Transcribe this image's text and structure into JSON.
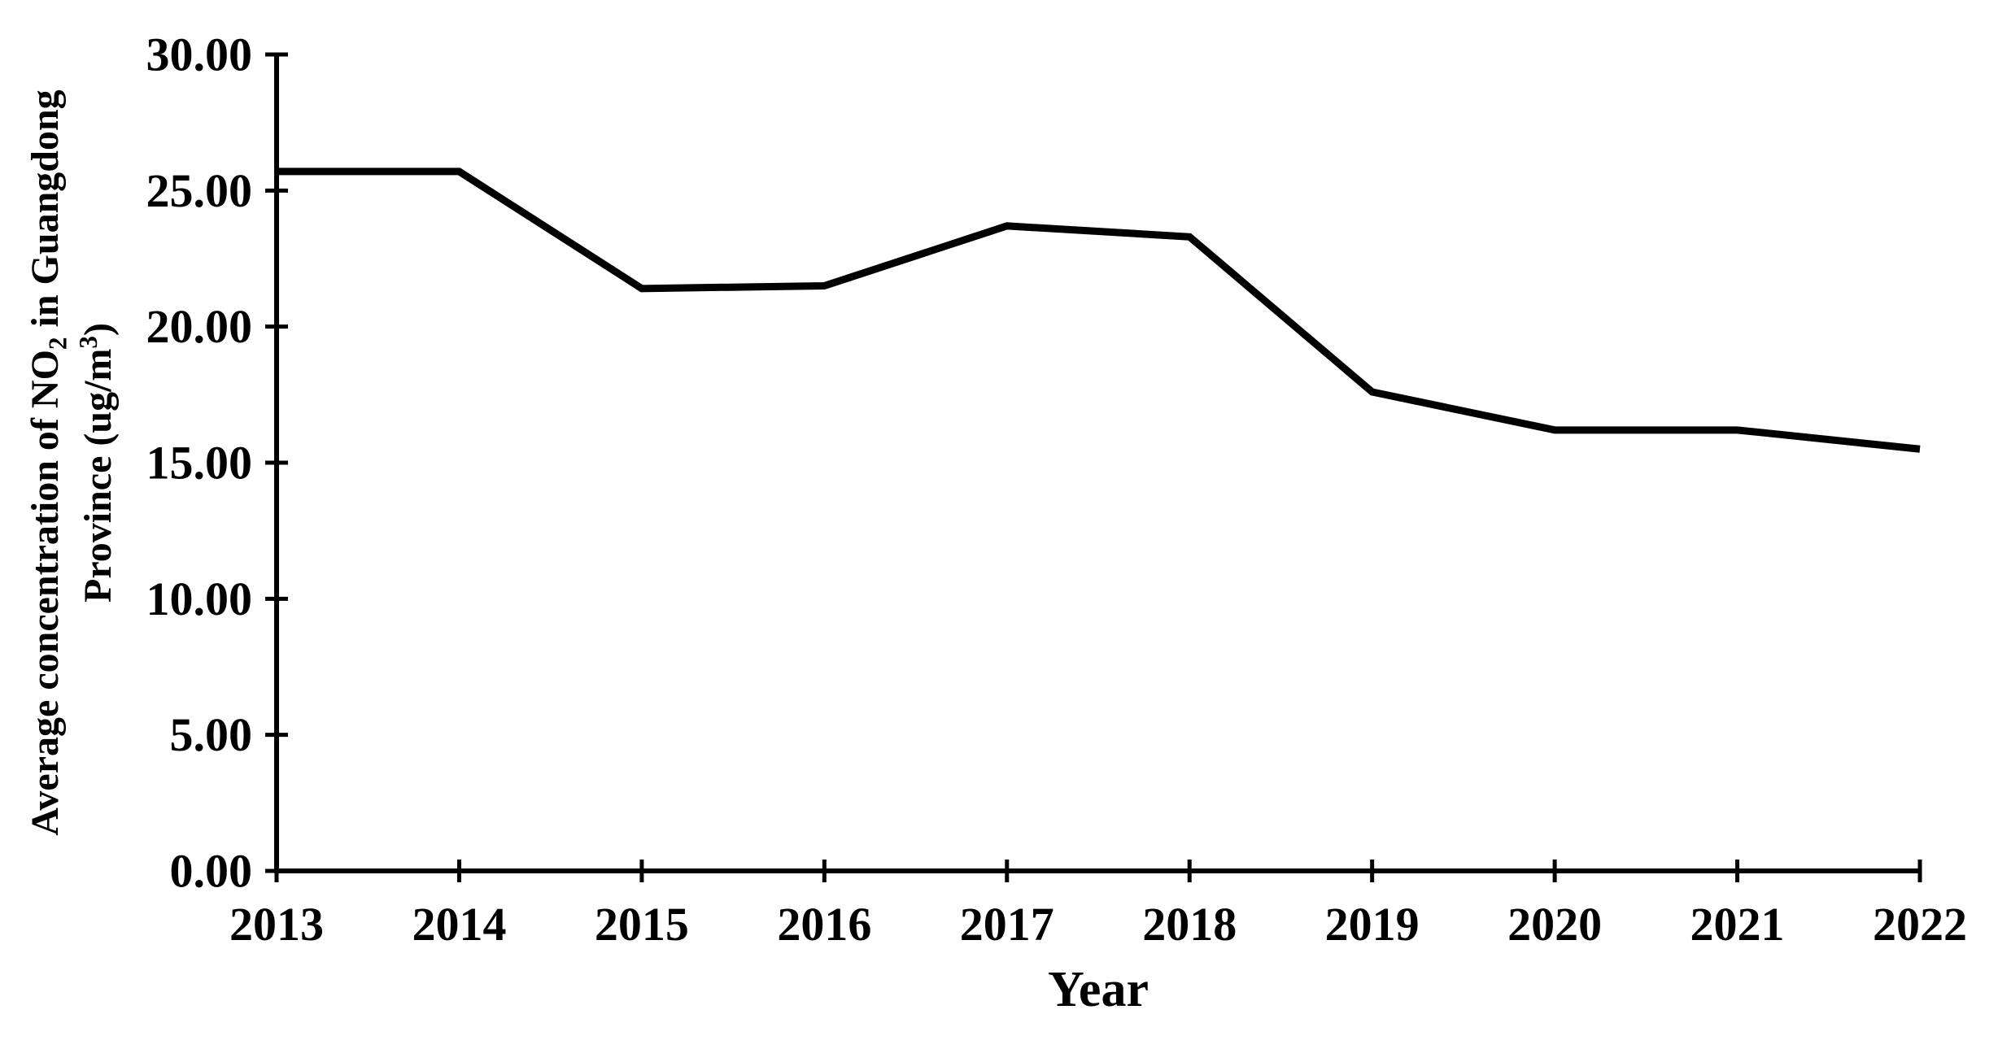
{
  "figure": {
    "background": "#ffffff",
    "axis_color": "#000000",
    "line_color": "#000000",
    "xlabel": "Year",
    "ylabel": {
      "line1_pre": "Average concentration of NO",
      "line1_sub": "2",
      "line1_post": " in Guangdong",
      "line2_pre": "Province (ug/m",
      "line2_sup": "3",
      "line2_post": ")"
    }
  },
  "chart_data": {
    "type": "line",
    "title": "",
    "xlabel": "Year",
    "ylabel": "Average concentration of NO2 in Guangdong Province (ug/m3)",
    "categories": [
      "2013",
      "2014",
      "2015",
      "2016",
      "2017",
      "2018",
      "2019",
      "2020",
      "2021",
      "2022"
    ],
    "values": [
      25.7,
      25.7,
      21.4,
      21.5,
      23.7,
      23.3,
      17.6,
      16.2,
      16.2,
      15.5
    ],
    "ylim": [
      0,
      30
    ],
    "ytick_interval": 5,
    "y_ticks": [
      {
        "value": 0,
        "label": "0.00"
      },
      {
        "value": 5,
        "label": "5.00"
      },
      {
        "value": 10,
        "label": "10.00"
      },
      {
        "value": 15,
        "label": "15.00"
      },
      {
        "value": 20,
        "label": "20.00"
      },
      {
        "value": 25,
        "label": "25.00"
      },
      {
        "value": 30,
        "label": "30.00"
      }
    ],
    "grid": false,
    "legend": false,
    "legend_position": "none",
    "marker": "none"
  }
}
